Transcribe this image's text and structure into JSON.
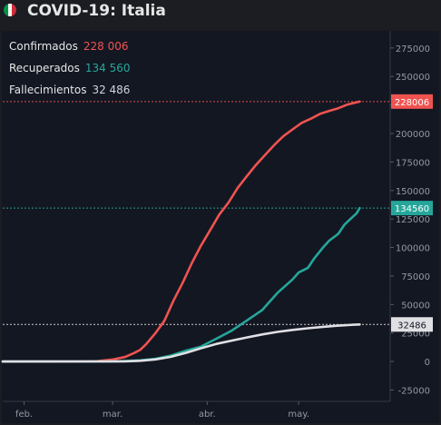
{
  "header": {
    "title": "COVID-19: Italia",
    "flag_colors": [
      "#009246",
      "#f4f5f0",
      "#ce2b37"
    ]
  },
  "legend": [
    {
      "label": "Confirmados",
      "value": "228 006",
      "color": "#ef5350"
    },
    {
      "label": "Recuperados",
      "value": "134 560",
      "color": "#26a69a"
    },
    {
      "label": "Fallecimientos",
      "value": "32 486",
      "color": "#d1d4dc"
    }
  ],
  "chart_data": {
    "type": "line",
    "x_axis": {
      "type": "date",
      "range": [
        "2020-01-25",
        "2020-05-31"
      ],
      "ticks": [
        {
          "label": "feb.",
          "date": "2020-02-01"
        },
        {
          "label": "mar.",
          "date": "2020-03-01"
        },
        {
          "label": "abr.",
          "date": "2020-04-01"
        },
        {
          "label": "may.",
          "date": "2020-05-01"
        }
      ]
    },
    "y_axis": {
      "position": "right",
      "range": [
        -35000,
        290000
      ],
      "ticks": [
        -25000,
        0,
        25000,
        50000,
        75000,
        100000,
        125000,
        150000,
        175000,
        200000,
        225000,
        250000,
        275000
      ]
    },
    "grid": false,
    "series": [
      {
        "key": "confirmed",
        "color": "#ef5350",
        "last_value_label": "228006",
        "points": [
          [
            "2020-01-25",
            0
          ],
          [
            "2020-02-21",
            20
          ],
          [
            "2020-02-25",
            300
          ],
          [
            "2020-03-01",
            1700
          ],
          [
            "2020-03-05",
            3900
          ],
          [
            "2020-03-08",
            7400
          ],
          [
            "2020-03-10",
            10100
          ],
          [
            "2020-03-12",
            15100
          ],
          [
            "2020-03-15",
            24700
          ],
          [
            "2020-03-18",
            35700
          ],
          [
            "2020-03-21",
            53600
          ],
          [
            "2020-03-24",
            69200
          ],
          [
            "2020-03-27",
            86500
          ],
          [
            "2020-03-30",
            101700
          ],
          [
            "2020-04-02",
            115200
          ],
          [
            "2020-04-05",
            128900
          ],
          [
            "2020-04-08",
            139400
          ],
          [
            "2020-04-11",
            152300
          ],
          [
            "2020-04-14",
            162500
          ],
          [
            "2020-04-17",
            172400
          ],
          [
            "2020-04-20",
            181200
          ],
          [
            "2020-04-23",
            189900
          ],
          [
            "2020-04-26",
            197700
          ],
          [
            "2020-04-29",
            203600
          ],
          [
            "2020-05-02",
            209300
          ],
          [
            "2020-05-05",
            213000
          ],
          [
            "2020-05-08",
            217200
          ],
          [
            "2020-05-11",
            219800
          ],
          [
            "2020-05-14",
            222100
          ],
          [
            "2020-05-17",
            225400
          ],
          [
            "2020-05-20",
            227400
          ],
          [
            "2020-05-21",
            228006
          ]
        ]
      },
      {
        "key": "recovered",
        "color": "#26a69a",
        "last_value_label": "134560",
        "points": [
          [
            "2020-01-25",
            0
          ],
          [
            "2020-03-01",
            50
          ],
          [
            "2020-03-05",
            400
          ],
          [
            "2020-03-10",
            1000
          ],
          [
            "2020-03-15",
            2300
          ],
          [
            "2020-03-20",
            5100
          ],
          [
            "2020-03-25",
            9400
          ],
          [
            "2020-03-30",
            13000
          ],
          [
            "2020-04-04",
            20000
          ],
          [
            "2020-04-09",
            27000
          ],
          [
            "2020-04-14",
            36000
          ],
          [
            "2020-04-19",
            45000
          ],
          [
            "2020-04-24",
            60000
          ],
          [
            "2020-04-29",
            72000
          ],
          [
            "2020-05-01",
            78000
          ],
          [
            "2020-05-04",
            82000
          ],
          [
            "2020-05-06",
            90000
          ],
          [
            "2020-05-09",
            100000
          ],
          [
            "2020-05-11",
            106000
          ],
          [
            "2020-05-14",
            112000
          ],
          [
            "2020-05-16",
            120000
          ],
          [
            "2020-05-18",
            125000
          ],
          [
            "2020-05-20",
            130000
          ],
          [
            "2020-05-21",
            134560
          ]
        ]
      },
      {
        "key": "deaths",
        "color": "#e0e0e4",
        "last_value_label": "32486",
        "points": [
          [
            "2020-01-25",
            0
          ],
          [
            "2020-03-01",
            30
          ],
          [
            "2020-03-05",
            150
          ],
          [
            "2020-03-10",
            630
          ],
          [
            "2020-03-15",
            1800
          ],
          [
            "2020-03-20",
            4000
          ],
          [
            "2020-03-25",
            7500
          ],
          [
            "2020-03-30",
            11600
          ],
          [
            "2020-04-04",
            15400
          ],
          [
            "2020-04-09",
            18300
          ],
          [
            "2020-04-14",
            21100
          ],
          [
            "2020-04-19",
            23700
          ],
          [
            "2020-04-24",
            25900
          ],
          [
            "2020-04-29",
            27700
          ],
          [
            "2020-05-04",
            29100
          ],
          [
            "2020-05-09",
            30400
          ],
          [
            "2020-05-14",
            31400
          ],
          [
            "2020-05-19",
            32200
          ],
          [
            "2020-05-21",
            32486
          ]
        ]
      }
    ]
  }
}
